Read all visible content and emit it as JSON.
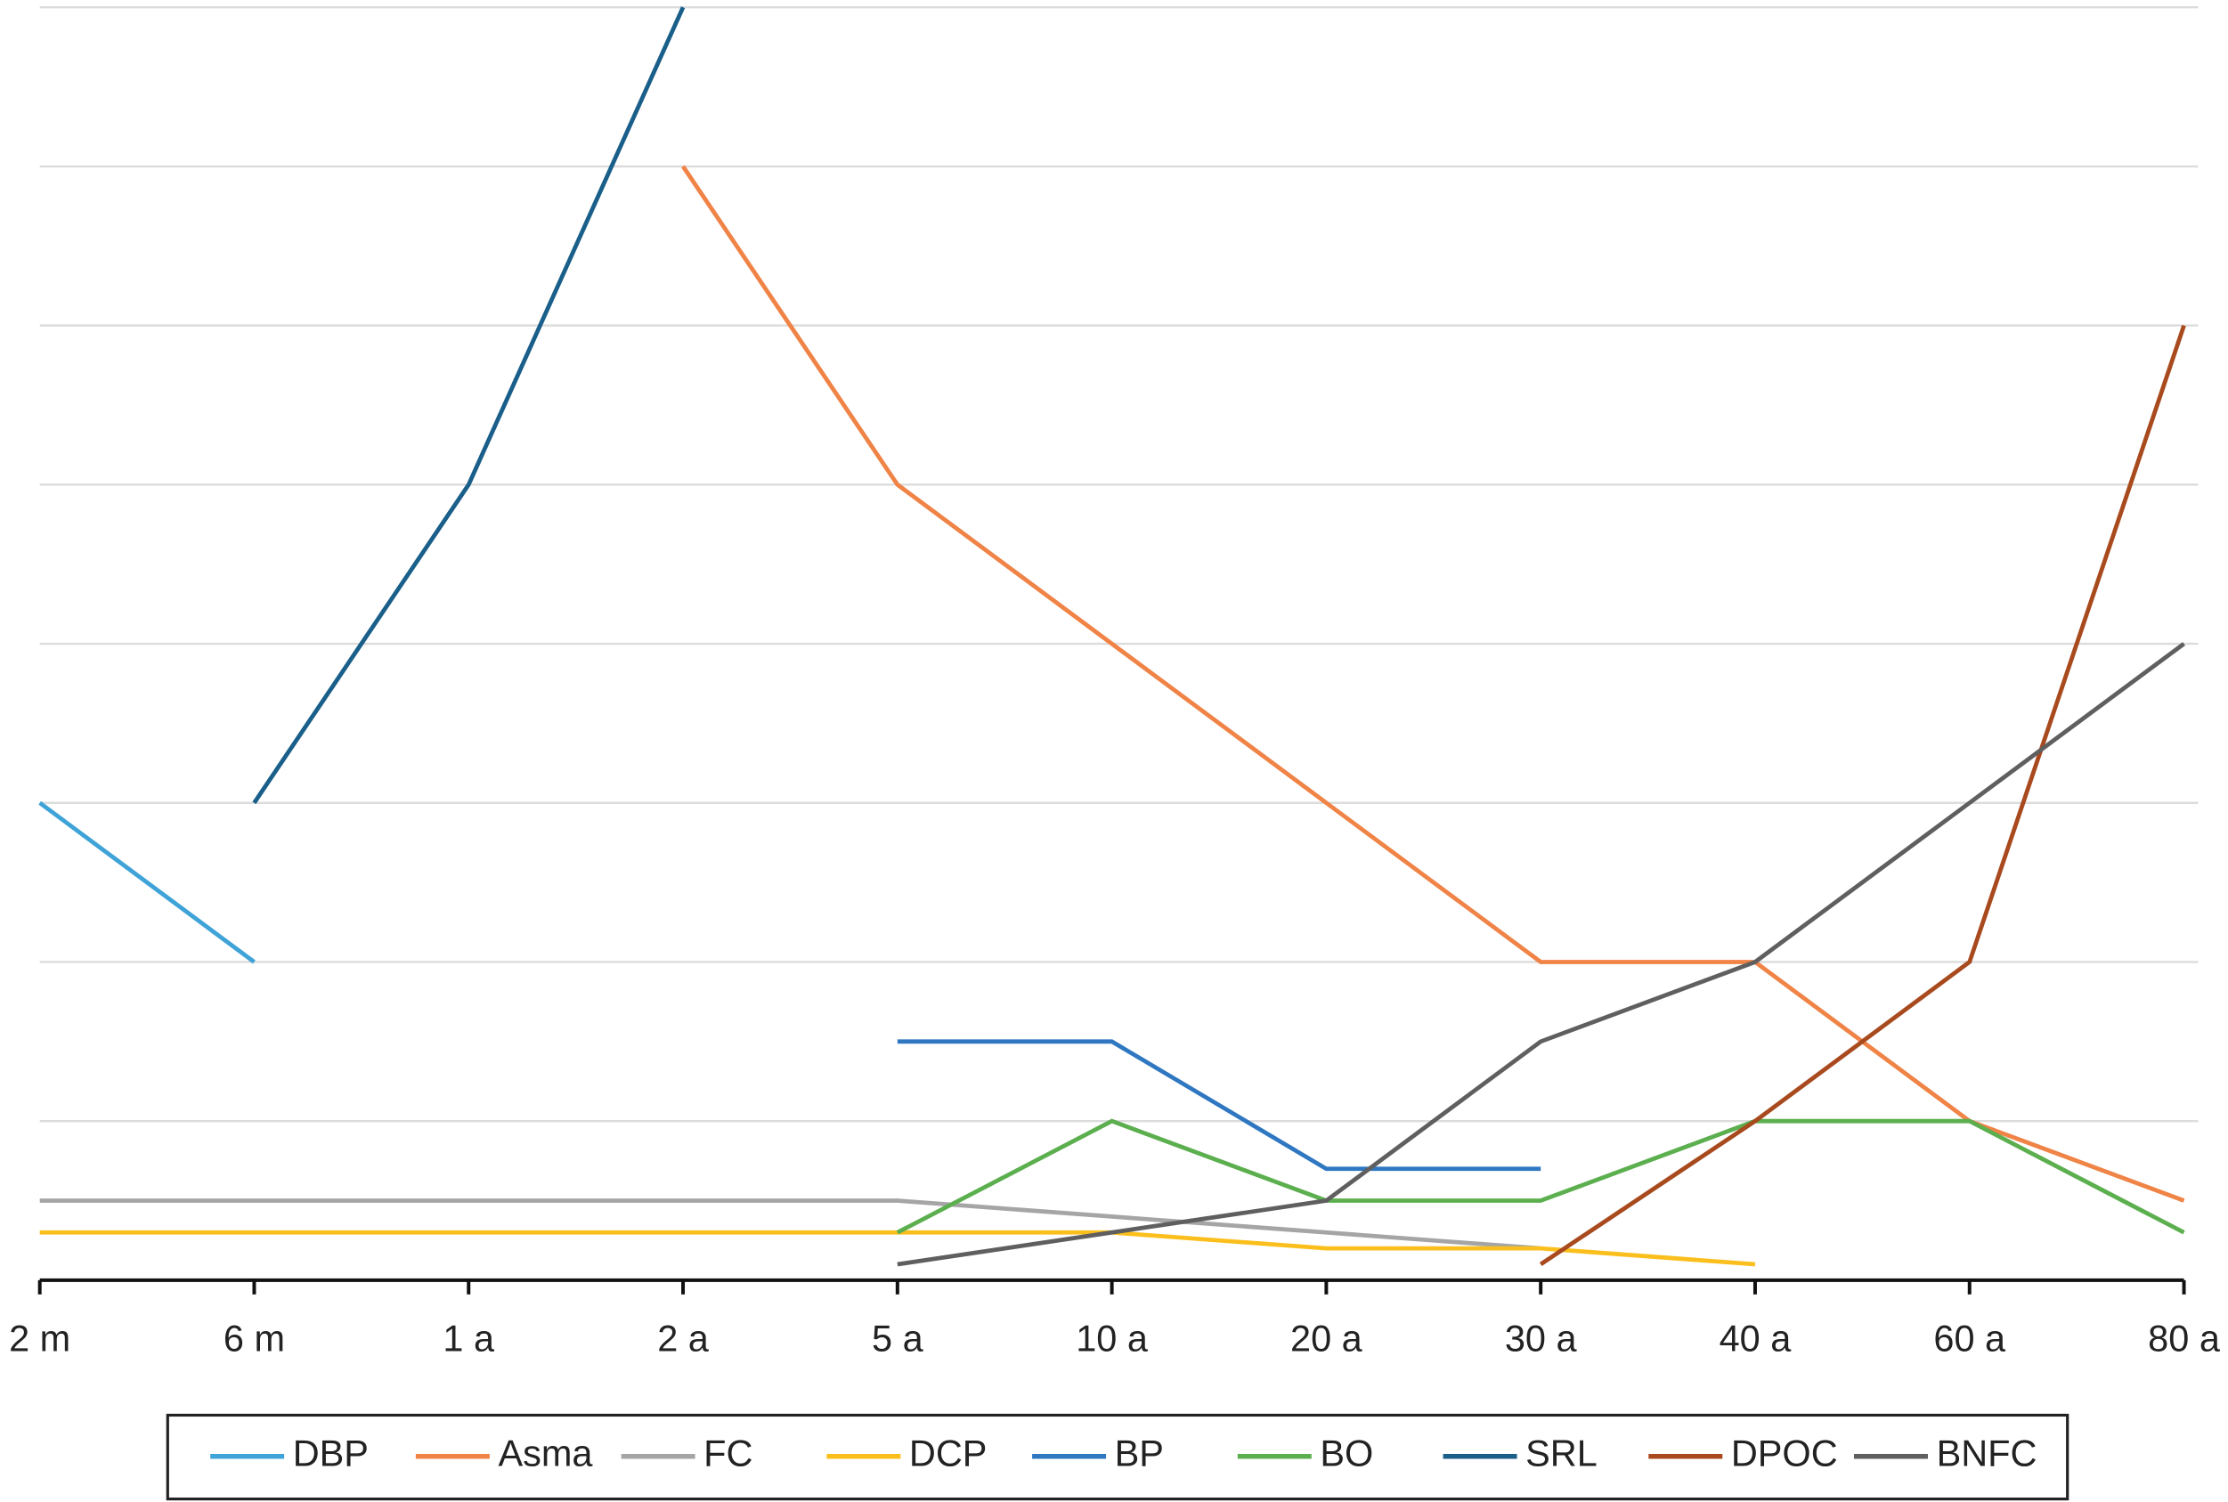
{
  "chart_data": {
    "type": "line",
    "categories": [
      "2 m",
      "6 m",
      "1 a",
      "2 a",
      "5 a",
      "10 a",
      "20 a",
      "30 a",
      "40 a",
      "60 a",
      "80 a"
    ],
    "ylim": [
      0,
      8
    ],
    "yticks": [
      1,
      2,
      3,
      4,
      5,
      6,
      7,
      8
    ],
    "grid": true,
    "series": [
      {
        "name": "DBP",
        "color": "#3fa3d8",
        "values": [
          3,
          2,
          null,
          null,
          null,
          null,
          null,
          null,
          null,
          null,
          null
        ]
      },
      {
        "name": "Asma",
        "color": "#f08346",
        "values": [
          null,
          null,
          null,
          7,
          5,
          4,
          3,
          2,
          2,
          1,
          0.5
        ]
      },
      {
        "name": "FC",
        "color": "#a5a5a5",
        "values": [
          0.5,
          0.5,
          0.5,
          0.5,
          0.5,
          0.4,
          0.3,
          0.2,
          null,
          null,
          null
        ]
      },
      {
        "name": "DCP",
        "color": "#fbbf1d",
        "values": [
          0.3,
          0.3,
          0.3,
          0.3,
          0.3,
          0.3,
          0.2,
          0.2,
          0.1,
          null,
          null
        ]
      },
      {
        "name": "BP",
        "color": "#2f77c1",
        "values": [
          null,
          null,
          null,
          null,
          1.5,
          1.5,
          0.7,
          0.7,
          null,
          null,
          null
        ]
      },
      {
        "name": "BO",
        "color": "#5caf4e",
        "values": [
          null,
          null,
          null,
          null,
          0.3,
          1,
          0.5,
          0.5,
          1,
          1,
          0.3
        ]
      },
      {
        "name": "SRL",
        "color": "#1a5f8a",
        "values": [
          null,
          3,
          5,
          8,
          null,
          null,
          null,
          null,
          null,
          null,
          null
        ]
      },
      {
        "name": "DPOC",
        "color": "#a84a1e",
        "values": [
          null,
          null,
          null,
          null,
          null,
          null,
          null,
          0.1,
          1,
          2,
          6
        ]
      },
      {
        "name": "BNFC",
        "color": "#5f5f5f",
        "values": [
          null,
          null,
          null,
          null,
          0.1,
          0.3,
          0.5,
          1.5,
          2,
          3,
          4
        ]
      }
    ]
  }
}
